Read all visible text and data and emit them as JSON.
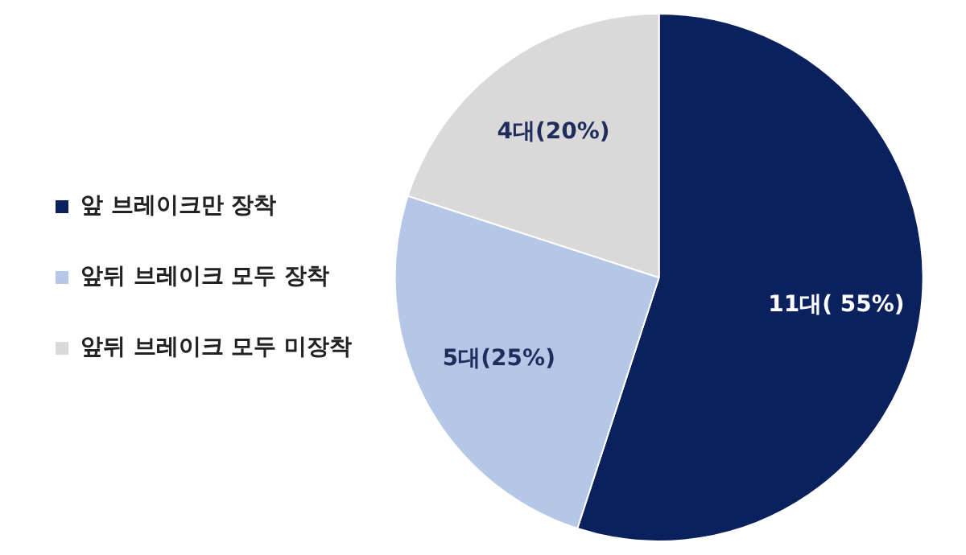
{
  "chart_data": {
    "type": "pie",
    "categories": [
      "앞 브레이크만 장착",
      "앞뒤 브레이크 모두 장착",
      "앞뒤 브레이크 모두 미장착"
    ],
    "values": [
      11,
      5,
      4
    ],
    "colors": [
      "#0b215e",
      "#b4c7e7",
      "#d9d9d9"
    ],
    "value_labels": [
      "11대( 55%)",
      "5대(25%)",
      "4대(20%)"
    ],
    "legend": "left"
  }
}
